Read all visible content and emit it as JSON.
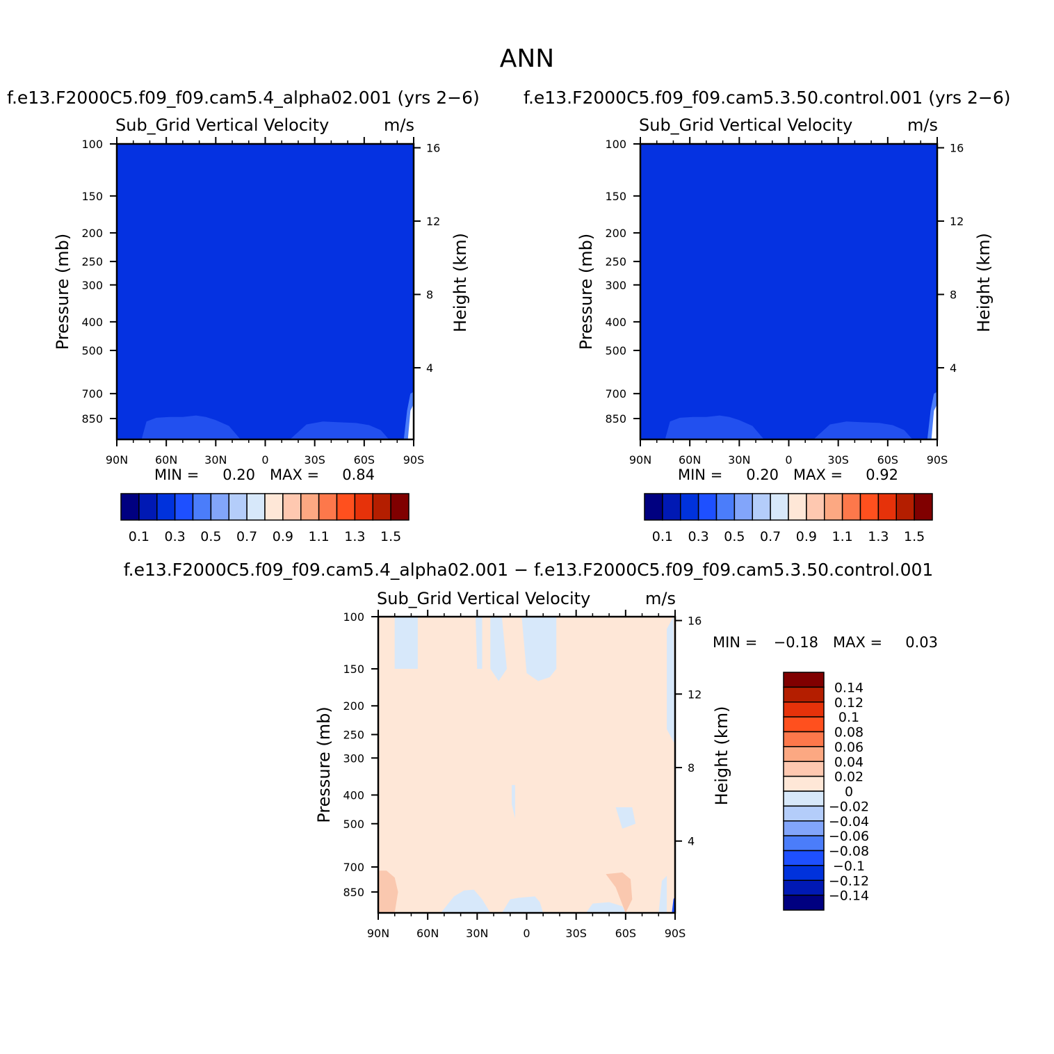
{
  "page_title": "ANN",
  "colors": {
    "abs_levels": [
      "#000080",
      "#0019b4",
      "#0032dc",
      "#1e50ff",
      "#4b7dfa",
      "#82a5fa",
      "#b4cdfa",
      "#d7e8fa",
      "#fee7d7",
      "#fec8b0",
      "#fca882",
      "#fd784b",
      "#ff501e",
      "#e6320a",
      "#b41e00",
      "#800000"
    ],
    "diff_levels": [
      "#000080",
      "#0019b4",
      "#0032dc",
      "#1e50ff",
      "#4b7dfa",
      "#82a5fa",
      "#b4cdfa",
      "#d7e8fa",
      "#fee7d7",
      "#fec8b0",
      "#fca882",
      "#fd784b",
      "#ff501e",
      "#e6320a",
      "#b41e00",
      "#800000"
    ],
    "abs_field": "#0532e1",
    "abs_low": "#2250ef",
    "diff_bg": "#fee7d7",
    "diff_neg": "#d7e8fa",
    "diff_pos": "#fac8af"
  },
  "panels": {
    "test": {
      "case_title": "f.e13.F2000C5.f09_f09.cam5.4_alpha02.001  (yrs  2−6)",
      "var_title": "Sub_Grid  Vertical  Velocity",
      "units": "m/s",
      "min_label": "MIN  =",
      "min_value": "0.20",
      "max_label": "MAX  =",
      "max_value": "0.84"
    },
    "control": {
      "case_title": "f.e13.F2000C5.f09_f09.cam5.3.50.control.001  (yrs  2−6)",
      "var_title": "Sub_Grid  Vertical  Velocity",
      "units": "m/s",
      "min_label": "MIN  =",
      "min_value": "0.20",
      "max_label": "MAX  =",
      "max_value": "0.92"
    },
    "diff": {
      "case_title": "f.e13.F2000C5.f09_f09.cam5.4_alpha02.001  −  f.e13.F2000C5.f09_f09.cam5.3.50.control.001",
      "var_title": "Sub_Grid  Vertical  Velocity",
      "units": "m/s",
      "min_label": "MIN  =",
      "min_value": "−0.18",
      "max_label": "MAX  =",
      "max_value": "0.03"
    }
  },
  "axes": {
    "ylabel": "Pressure  (mb)",
    "y2label": "Height  (km)",
    "pressure_ticks": [
      100,
      150,
      200,
      250,
      300,
      400,
      500,
      700,
      850
    ],
    "height_ticks": [
      16,
      12,
      8,
      4
    ],
    "lat_ticks": [
      "90N",
      "60N",
      "30N",
      "0",
      "30S",
      "60S",
      "90S"
    ]
  },
  "colorbars": {
    "abs_labels": [
      "0.1",
      "0.3",
      "0.5",
      "0.7",
      "0.9",
      "1.1",
      "1.3",
      "1.5"
    ],
    "diff_labels": [
      "0.14",
      "0.12",
      "0.1",
      "0.08",
      "0.06",
      "0.04",
      "0.02",
      "0",
      "−0.02",
      "−0.04",
      "−0.06",
      "−0.08",
      "−0.1",
      "−0.12",
      "−0.14"
    ]
  },
  "chart_data": [
    {
      "type": "heatmap",
      "title": "Sub_Grid  Vertical  Velocity",
      "case": "f.e13.F2000C5.f09_f09.cam5.4_alpha02.001  (yrs  2−6)",
      "xlabel": "",
      "ylabel": "Pressure  (mb)",
      "y2label": "Height  (km)",
      "x_ticks": [
        "90N",
        "60N",
        "30N",
        "0",
        "30S",
        "60S",
        "90S"
      ],
      "y_ticks": [
        100,
        150,
        200,
        250,
        300,
        400,
        500,
        700,
        850
      ],
      "ylim": [
        100,
        1000
      ],
      "y_scale": "log",
      "units": "m/s",
      "min": 0.2,
      "max": 0.84,
      "levels": [
        0.1,
        0.2,
        0.3,
        0.4,
        0.5,
        0.6,
        0.7,
        0.8,
        0.9,
        1.0,
        1.1,
        1.2,
        1.3,
        1.4,
        1.5
      ]
    },
    {
      "type": "heatmap",
      "title": "Sub_Grid  Vertical  Velocity",
      "case": "f.e13.F2000C5.f09_f09.cam5.3.50.control.001  (yrs  2−6)",
      "xlabel": "",
      "ylabel": "Pressure  (mb)",
      "y2label": "Height  (km)",
      "x_ticks": [
        "90N",
        "60N",
        "30N",
        "0",
        "30S",
        "60S",
        "90S"
      ],
      "y_ticks": [
        100,
        150,
        200,
        250,
        300,
        400,
        500,
        700,
        850
      ],
      "ylim": [
        100,
        1000
      ],
      "y_scale": "log",
      "units": "m/s",
      "min": 0.2,
      "max": 0.92,
      "levels": [
        0.1,
        0.2,
        0.3,
        0.4,
        0.5,
        0.6,
        0.7,
        0.8,
        0.9,
        1.0,
        1.1,
        1.2,
        1.3,
        1.4,
        1.5
      ]
    },
    {
      "type": "heatmap",
      "title": "Sub_Grid  Vertical  Velocity",
      "case": "f.e13.F2000C5.f09_f09.cam5.4_alpha02.001  −  f.e13.F2000C5.f09_f09.cam5.3.50.control.001",
      "xlabel": "",
      "ylabel": "Pressure  (mb)",
      "y2label": "Height  (km)",
      "x_ticks": [
        "90N",
        "60N",
        "30N",
        "0",
        "30S",
        "60S",
        "90S"
      ],
      "y_ticks": [
        100,
        150,
        200,
        250,
        300,
        400,
        500,
        700,
        850
      ],
      "ylim": [
        100,
        1000
      ],
      "y_scale": "log",
      "units": "m/s",
      "min": -0.18,
      "max": 0.03,
      "levels": [
        -0.14,
        -0.12,
        -0.1,
        -0.08,
        -0.06,
        -0.04,
        -0.02,
        0,
        0.02,
        0.04,
        0.06,
        0.08,
        0.1,
        0.12,
        0.14
      ]
    }
  ]
}
